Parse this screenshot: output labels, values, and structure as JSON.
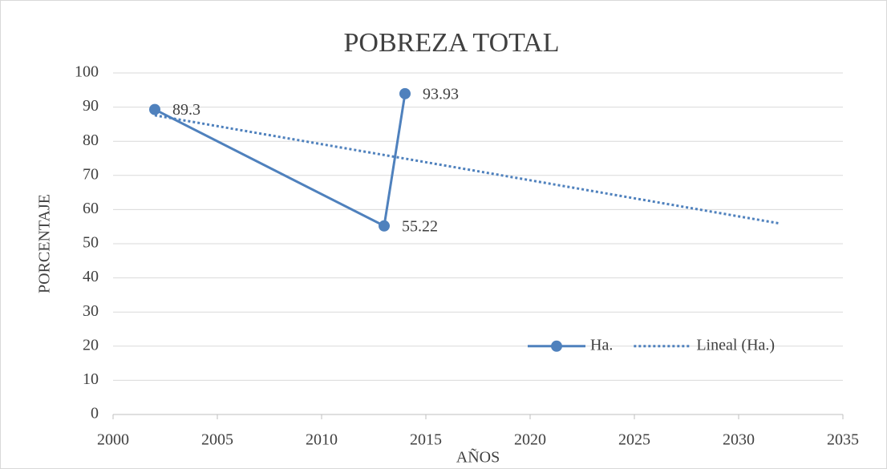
{
  "chart_data": {
    "type": "line",
    "title": "POBREZA TOTAL",
    "x_label": "AÑOS",
    "y_label": "PORCENTAJE",
    "series": [
      {
        "name": "Ha.",
        "color": "#4f81bd",
        "style": "solid",
        "markers": true,
        "data_labels": true,
        "x": [
          2002,
          2013,
          2014
        ],
        "values": [
          89.3,
          55.22,
          93.93
        ]
      },
      {
        "name": "Lineal (Ha.)",
        "color": "#4f81bd",
        "style": "dotted",
        "markers": false,
        "data_labels": false,
        "x": [
          2002,
          2032
        ],
        "values": [
          87.6,
          55.9
        ]
      }
    ],
    "xlim": [
      2000,
      2035
    ],
    "xticks": [
      2000,
      2005,
      2010,
      2015,
      2020,
      2025,
      2030,
      2035
    ],
    "ylim": [
      0,
      100
    ],
    "yticks": [
      0,
      10,
      20,
      30,
      40,
      50,
      60,
      70,
      80,
      90,
      100
    ],
    "grid": true,
    "legend": "lower right"
  }
}
